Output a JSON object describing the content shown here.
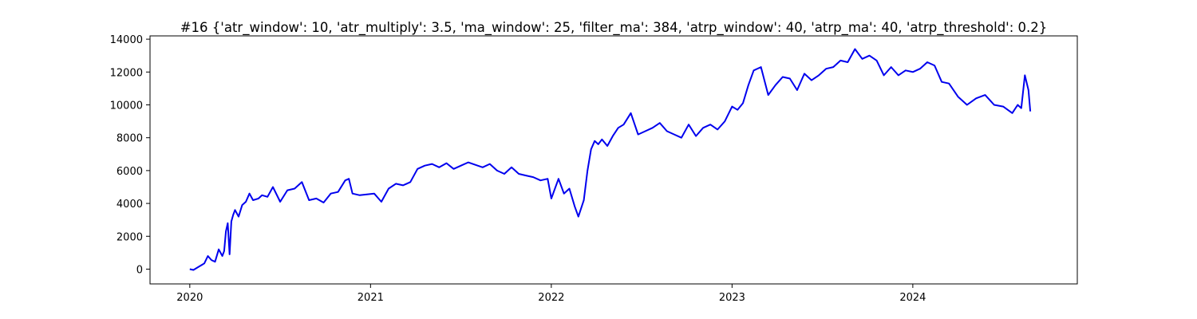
{
  "chart_data": {
    "type": "line",
    "title": "#16 {'atr_window': 10, 'atr_multiply': 3.5, 'ma_window': 25, 'filter_ma': 384, 'atrp_window': 40, 'atrp_ma': 40, 'atrp_threshold': 0.2}",
    "xlabel": "",
    "ylabel": "",
    "xlim": [
      2019.78,
      2024.91
    ],
    "ylim": [
      -900,
      14200
    ],
    "xticks": [
      {
        "value": 2020,
        "label": "2020"
      },
      {
        "value": 2021,
        "label": "2021"
      },
      {
        "value": 2022,
        "label": "2022"
      },
      {
        "value": 2023,
        "label": "2023"
      },
      {
        "value": 2024,
        "label": "2024"
      }
    ],
    "yticks": [
      {
        "value": 0,
        "label": "0"
      },
      {
        "value": 2000,
        "label": "2000"
      },
      {
        "value": 4000,
        "label": "4000"
      },
      {
        "value": 6000,
        "label": "6000"
      },
      {
        "value": 8000,
        "label": "8000"
      },
      {
        "value": 10000,
        "label": "10000"
      },
      {
        "value": 12000,
        "label": "12000"
      },
      {
        "value": 14000,
        "label": "14000"
      }
    ],
    "grid": false,
    "series": [
      {
        "color": "#0000ee",
        "x": [
          2020.0,
          2020.02,
          2020.05,
          2020.08,
          2020.1,
          2020.12,
          2020.14,
          2020.16,
          2020.18,
          2020.19,
          2020.2,
          2020.21,
          2020.22,
          2020.23,
          2020.24,
          2020.25,
          2020.27,
          2020.29,
          2020.31,
          2020.33,
          2020.35,
          2020.38,
          2020.4,
          2020.43,
          2020.46,
          2020.5,
          2020.54,
          2020.58,
          2020.62,
          2020.66,
          2020.7,
          2020.74,
          2020.78,
          2020.82,
          2020.86,
          2020.88,
          2020.9,
          2020.94,
          2020.98,
          2021.02,
          2021.06,
          2021.1,
          2021.14,
          2021.18,
          2021.22,
          2021.26,
          2021.3,
          2021.34,
          2021.38,
          2021.42,
          2021.46,
          2021.5,
          2021.54,
          2021.58,
          2021.62,
          2021.66,
          2021.7,
          2021.74,
          2021.78,
          2021.82,
          2021.86,
          2021.9,
          2021.94,
          2021.98,
          2022.0,
          2022.04,
          2022.07,
          2022.1,
          2022.13,
          2022.15,
          2022.18,
          2022.2,
          2022.22,
          2022.24,
          2022.26,
          2022.28,
          2022.31,
          2022.34,
          2022.37,
          2022.4,
          2022.44,
          2022.48,
          2022.52,
          2022.56,
          2022.6,
          2022.64,
          2022.68,
          2022.72,
          2022.76,
          2022.8,
          2022.84,
          2022.88,
          2022.92,
          2022.96,
          2023.0,
          2023.03,
          2023.06,
          2023.09,
          2023.12,
          2023.16,
          2023.2,
          2023.24,
          2023.28,
          2023.32,
          2023.36,
          2023.4,
          2023.44,
          2023.48,
          2023.52,
          2023.56,
          2023.6,
          2023.64,
          2023.68,
          2023.72,
          2023.76,
          2023.8,
          2023.84,
          2023.88,
          2023.92,
          2023.96,
          2024.0,
          2024.04,
          2024.08,
          2024.12,
          2024.16,
          2024.2,
          2024.25,
          2024.3,
          2024.35,
          2024.4,
          2024.45,
          2024.5,
          2024.55,
          2024.58,
          2024.6,
          2024.62,
          2024.64,
          2024.65
        ],
        "y": [
          0,
          -50,
          150,
          350,
          800,
          550,
          450,
          1200,
          800,
          1100,
          2300,
          2800,
          900,
          2900,
          3300,
          3600,
          3200,
          3900,
          4100,
          4600,
          4200,
          4300,
          4500,
          4400,
          5000,
          4100,
          4800,
          4900,
          5300,
          4200,
          4300,
          4050,
          4600,
          4700,
          5400,
          5500,
          4600,
          4500,
          4550,
          4600,
          4100,
          4900,
          5200,
          5100,
          5300,
          6100,
          6300,
          6400,
          6200,
          6450,
          6100,
          6300,
          6500,
          6350,
          6200,
          6400,
          6000,
          5800,
          6200,
          5800,
          5700,
          5600,
          5400,
          5500,
          4300,
          5500,
          4600,
          4900,
          3800,
          3200,
          4200,
          6000,
          7300,
          7800,
          7600,
          7900,
          7500,
          8100,
          8600,
          8800,
          9500,
          8200,
          8400,
          8600,
          8900,
          8400,
          8200,
          8000,
          8800,
          8100,
          8600,
          8800,
          8500,
          9000,
          9900,
          9700,
          10100,
          11200,
          12100,
          12300,
          10600,
          11200,
          11700,
          11600,
          10900,
          11900,
          11500,
          11800,
          12200,
          12300,
          12700,
          12600,
          13400,
          12800,
          13000,
          12700,
          11800,
          12300,
          11800,
          12100,
          12000,
          12200,
          12600,
          12400,
          11400,
          11300,
          10500,
          10000,
          10400,
          10600,
          10000,
          9900,
          9500,
          10000,
          9800,
          11800,
          10900,
          9600
        ]
      }
    ]
  }
}
